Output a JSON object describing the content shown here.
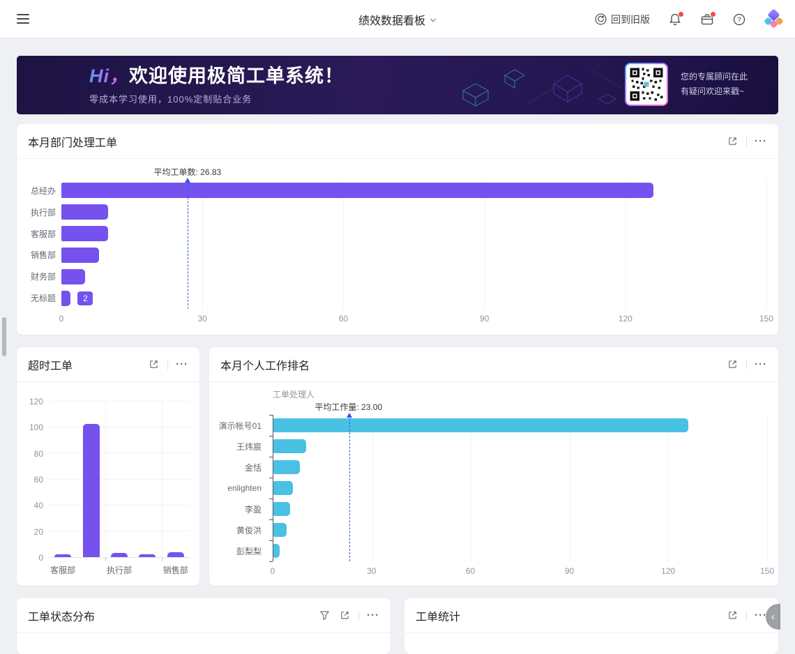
{
  "header": {
    "title": "绩效数据看板",
    "back_to_old_label": "回到旧版"
  },
  "banner": {
    "greeting": "Hi，",
    "title": "欢迎使用极简工单系统！",
    "subtitle": "零成本学习使用，100%定制贴合业务",
    "qr_caption_line1": "您的专属顾问在此",
    "qr_caption_line2": "有疑问欢迎来戳~"
  },
  "cards": {
    "dept": {
      "title": "本月部门处理工单"
    },
    "overtime": {
      "title": "超时工单"
    },
    "ranking": {
      "title": "本月个人工作排名"
    },
    "status_dist": {
      "title": "工单状态分布"
    },
    "stats": {
      "title": "工单统计"
    }
  },
  "glyphs": {
    "ellipsis": "···",
    "collapse_chevron": "‹"
  },
  "colors": {
    "purple_bar": "#7552ee",
    "cyan_bar": "#49c1e3",
    "average_line": "#2f54eb"
  },
  "chart_data": [
    {
      "id": "dept-tickets",
      "type": "bar",
      "orientation": "horizontal",
      "title": "本月部门处理工单",
      "categories": [
        "总经办",
        "执行部",
        "客服部",
        "销售部",
        "财务部",
        "无标题"
      ],
      "values": [
        126,
        10,
        10,
        8,
        5,
        2
      ],
      "xlim": [
        0,
        150
      ],
      "xticks": [
        0,
        30,
        60,
        90,
        120,
        150
      ],
      "bar_color": "#7552ee",
      "grid": true,
      "average_line": {
        "value": 26.83,
        "label": "平均工单数: 26.83"
      },
      "data_label": {
        "category": "无标题",
        "value": 2
      }
    },
    {
      "id": "overtime-tickets",
      "type": "bar",
      "orientation": "vertical",
      "title": "超时工单",
      "categories": [
        "客服部",
        "",
        "执行部",
        "",
        "销售部"
      ],
      "values": [
        2,
        103,
        3,
        2,
        4
      ],
      "ylim": [
        0,
        120
      ],
      "yticks": [
        0,
        20,
        40,
        60,
        80,
        100,
        120
      ],
      "bar_color": "#7552ee",
      "grid": true,
      "group_separators": [
        2,
        4
      ]
    },
    {
      "id": "personal-ranking",
      "type": "bar",
      "orientation": "horizontal",
      "title": "本月个人工作排名",
      "axis_name": "工单处理人",
      "categories": [
        "演示帐号01",
        "王炜宸",
        "金恬",
        "enlighten",
        "李盈",
        "黄俊洪",
        "彭梨梨"
      ],
      "values": [
        126,
        10,
        8,
        6,
        5,
        4,
        2
      ],
      "xlim": [
        0,
        150
      ],
      "xticks": [
        0,
        30,
        60,
        90,
        120,
        150
      ],
      "bar_color": "#49c1e3",
      "grid": true,
      "average_line": {
        "value": 23.0,
        "label": "平均工作量: 23.00"
      }
    }
  ]
}
